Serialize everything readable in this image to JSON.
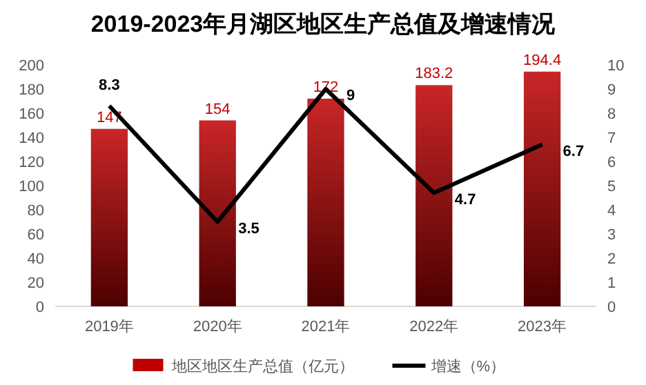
{
  "chart_data": {
    "type": "bar",
    "title": "2019-2023年月湖区地区生产总值及增速情况",
    "categories": [
      "2019年",
      "2020年",
      "2021年",
      "2022年",
      "2023年"
    ],
    "series": [
      {
        "name": "地区地区生产总值（亿元）",
        "color": "#c00000",
        "values": [
          147,
          154,
          172,
          183.2,
          194.4
        ]
      },
      {
        "name": "增速（%）",
        "type": "line",
        "axis": "y2",
        "color": "#000000",
        "values": [
          8.3,
          3.5,
          9,
          4.7,
          6.7
        ]
      }
    ],
    "ylim": [
      0,
      200
    ],
    "yticks": [
      0,
      20,
      40,
      60,
      80,
      100,
      120,
      140,
      160,
      180,
      200
    ],
    "y2lim": [
      0,
      10
    ],
    "y2ticks": [
      0,
      1,
      2,
      3,
      4,
      5,
      6,
      7,
      8,
      9,
      10
    ],
    "data_labels": true,
    "legend": "bottom",
    "marker": "none",
    "line_style": "solid"
  }
}
